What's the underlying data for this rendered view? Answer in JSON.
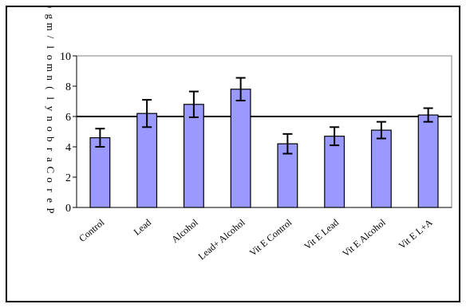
{
  "chart_data": {
    "type": "bar",
    "title": "",
    "xlabel": "",
    "ylabel": "Pero Carbonyl (nmol/mg)",
    "ylim": [
      0,
      10
    ],
    "yticks": [
      0,
      2,
      4,
      6,
      8,
      10
    ],
    "ytick_labels": [
      "0",
      "2",
      "4",
      "6",
      "8",
      "10"
    ],
    "categories": [
      "Control",
      "Lead",
      "Alcohol",
      "Lead+ Alcohol",
      "Vit E Control",
      "Vit E Lead",
      "Vit E Alcohol",
      "Vit E L+A"
    ],
    "values": [
      4.6,
      6.2,
      6.8,
      7.8,
      4.2,
      4.7,
      5.1,
      6.1
    ],
    "errors": [
      0.6,
      0.9,
      0.85,
      0.75,
      0.65,
      0.6,
      0.55,
      0.45
    ],
    "reference_line": 6,
    "grid": false,
    "colors": {
      "bar": "#9999ff",
      "bar_edge": "#000000",
      "plot_bg": "#ffffff",
      "plot_border": "#808080"
    }
  }
}
